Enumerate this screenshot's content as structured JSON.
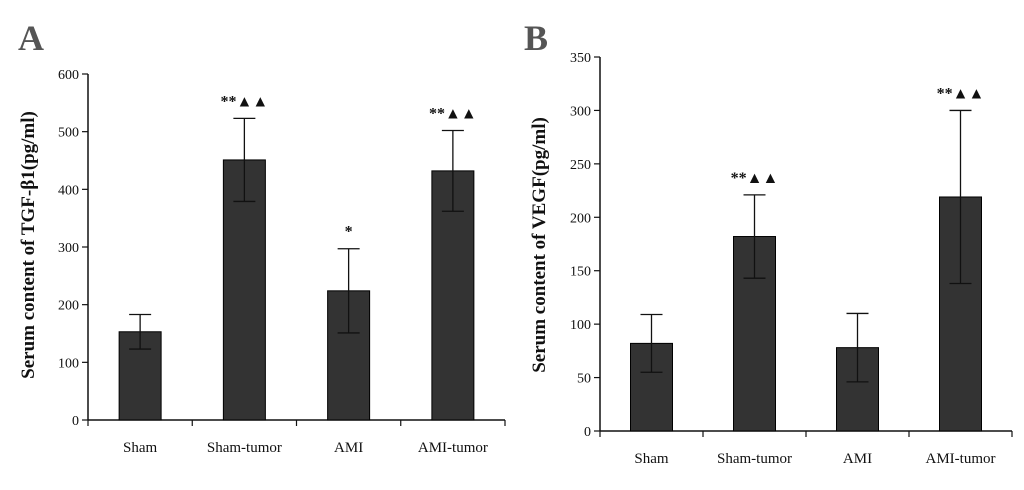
{
  "chart_data": [
    {
      "type": "bar",
      "panel_label": "A",
      "title": "",
      "xlabel": "",
      "ylabel": "Serum content of TGF-β1(pg/ml)",
      "ylim": [
        0,
        600
      ],
      "yticks": [
        0,
        100,
        200,
        300,
        400,
        500,
        600
      ],
      "categories": [
        "Sham",
        "Sham-tumor",
        "AMI",
        "AMI-tumor"
      ],
      "series": [
        {
          "values": [
            153,
            451,
            224,
            432
          ],
          "errors": [
            30,
            72,
            73,
            70
          ]
        }
      ],
      "annotations": [
        "",
        "**▲▲",
        "*",
        "**▲▲"
      ],
      "bar_color": "#333333",
      "grid": false
    },
    {
      "type": "bar",
      "panel_label": "B",
      "title": "",
      "xlabel": "",
      "ylabel": "Serum content of VEGF(pg/ml)",
      "ylim": [
        0,
        350
      ],
      "yticks": [
        0,
        50,
        100,
        150,
        200,
        250,
        300,
        350
      ],
      "categories": [
        "Sham",
        "Sham-tumor",
        "AMI",
        "AMI-tumor"
      ],
      "series": [
        {
          "values": [
            82,
            182,
            78,
            219
          ],
          "errors": [
            27,
            39,
            32,
            81
          ]
        }
      ],
      "annotations": [
        "",
        "**▲▲",
        "",
        "**▲▲"
      ],
      "bar_color": "#333333",
      "grid": false
    }
  ]
}
